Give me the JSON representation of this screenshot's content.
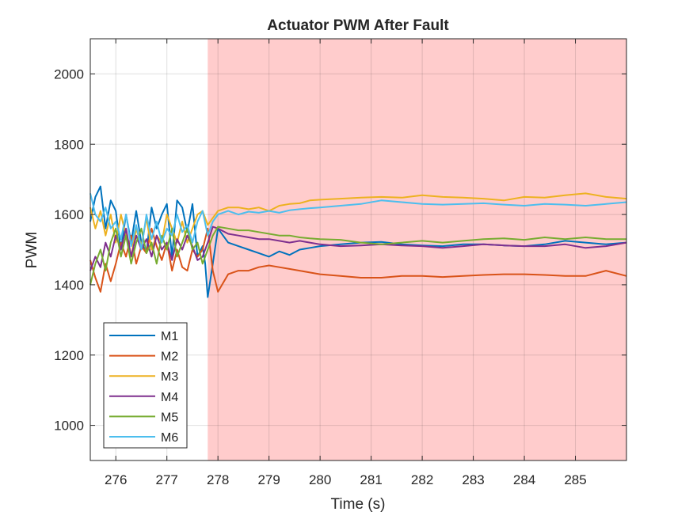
{
  "chart_data": {
    "type": "line",
    "title": "Actuator PWM After Fault",
    "xlabel": "Time (s)",
    "ylabel": "PWM",
    "xlim": [
      275.5,
      286.0
    ],
    "ylim": [
      900,
      2100
    ],
    "xticks": [
      276,
      277,
      278,
      279,
      280,
      281,
      282,
      283,
      284,
      285
    ],
    "yticks": [
      1000,
      1200,
      1400,
      1600,
      1800,
      2000
    ],
    "grid": true,
    "legend_location": "bottom-left",
    "fault_region": {
      "x_start": 277.8,
      "x_end": 286.0,
      "color": "#ffcccc"
    },
    "series": [
      {
        "name": "M1",
        "color": "#0072BD",
        "x": [
          275.5,
          275.6,
          275.7,
          275.8,
          275.9,
          276.0,
          276.1,
          276.2,
          276.3,
          276.4,
          276.5,
          276.6,
          276.7,
          276.8,
          276.9,
          277.0,
          277.1,
          277.2,
          277.3,
          277.4,
          277.5,
          277.6,
          277.7,
          277.75,
          277.8,
          277.9,
          278.0,
          278.2,
          278.4,
          278.6,
          278.8,
          279.0,
          279.2,
          279.4,
          279.6,
          279.8,
          280.0,
          280.4,
          280.8,
          281.2,
          281.6,
          282.0,
          282.4,
          282.8,
          283.2,
          283.6,
          284.0,
          284.4,
          284.8,
          285.2,
          285.6,
          286.0
        ],
        "y": [
          1580,
          1650,
          1680,
          1560,
          1640,
          1610,
          1500,
          1600,
          1520,
          1610,
          1520,
          1490,
          1620,
          1560,
          1600,
          1630,
          1480,
          1640,
          1620,
          1550,
          1630,
          1480,
          1510,
          1460,
          1365,
          1460,
          1560,
          1520,
          1510,
          1500,
          1490,
          1480,
          1495,
          1485,
          1500,
          1505,
          1510,
          1515,
          1520,
          1522,
          1515,
          1512,
          1510,
          1515,
          1515,
          1512,
          1510,
          1515,
          1525,
          1520,
          1515,
          1520
        ]
      },
      {
        "name": "M2",
        "color": "#D95319",
        "x": [
          275.5,
          275.6,
          275.7,
          275.8,
          275.9,
          276.0,
          276.1,
          276.2,
          276.3,
          276.4,
          276.5,
          276.6,
          276.7,
          276.8,
          276.9,
          277.0,
          277.1,
          277.2,
          277.3,
          277.4,
          277.5,
          277.6,
          277.7,
          277.8,
          277.9,
          278.0,
          278.2,
          278.4,
          278.6,
          278.8,
          279.0,
          279.2,
          279.4,
          279.6,
          279.8,
          280.0,
          280.4,
          280.8,
          281.2,
          281.6,
          282.0,
          282.4,
          282.8,
          283.2,
          283.6,
          284.0,
          284.4,
          284.8,
          285.2,
          285.6,
          286.0
        ],
        "y": [
          1470,
          1420,
          1380,
          1460,
          1410,
          1460,
          1520,
          1480,
          1540,
          1460,
          1510,
          1490,
          1560,
          1510,
          1470,
          1520,
          1440,
          1500,
          1450,
          1440,
          1500,
          1480,
          1500,
          1560,
          1440,
          1380,
          1430,
          1440,
          1440,
          1450,
          1455,
          1450,
          1445,
          1440,
          1435,
          1430,
          1425,
          1420,
          1420,
          1425,
          1425,
          1422,
          1425,
          1428,
          1430,
          1430,
          1428,
          1425,
          1425,
          1440,
          1425
        ]
      },
      {
        "name": "M3",
        "color": "#EDB120",
        "x": [
          275.5,
          275.6,
          275.7,
          275.8,
          275.9,
          276.0,
          276.1,
          276.2,
          276.3,
          276.4,
          276.5,
          276.6,
          276.7,
          276.8,
          276.9,
          277.0,
          277.1,
          277.2,
          277.3,
          277.4,
          277.5,
          277.6,
          277.7,
          277.8,
          277.9,
          278.0,
          278.2,
          278.4,
          278.6,
          278.8,
          279.0,
          279.2,
          279.4,
          279.6,
          279.8,
          280.0,
          280.4,
          280.8,
          281.2,
          281.6,
          282.0,
          282.4,
          282.8,
          283.2,
          283.6,
          284.0,
          284.4,
          284.8,
          285.2,
          285.6,
          286.0
        ],
        "y": [
          1620,
          1560,
          1610,
          1540,
          1600,
          1520,
          1600,
          1540,
          1480,
          1560,
          1510,
          1590,
          1500,
          1540,
          1520,
          1600,
          1560,
          1520,
          1580,
          1520,
          1560,
          1600,
          1610,
          1570,
          1590,
          1610,
          1620,
          1620,
          1615,
          1620,
          1610,
          1625,
          1630,
          1632,
          1640,
          1642,
          1645,
          1648,
          1650,
          1648,
          1655,
          1650,
          1648,
          1645,
          1640,
          1650,
          1648,
          1655,
          1660,
          1650,
          1645
        ]
      },
      {
        "name": "M4",
        "color": "#7E2F8E",
        "x": [
          275.5,
          275.6,
          275.7,
          275.8,
          275.9,
          276.0,
          276.1,
          276.2,
          276.3,
          276.4,
          276.5,
          276.6,
          276.7,
          276.8,
          276.9,
          277.0,
          277.1,
          277.2,
          277.3,
          277.4,
          277.5,
          277.6,
          277.7,
          277.8,
          277.9,
          278.0,
          278.2,
          278.4,
          278.6,
          278.8,
          279.0,
          279.2,
          279.4,
          279.6,
          279.8,
          280.0,
          280.4,
          280.8,
          281.2,
          281.6,
          282.0,
          282.4,
          282.8,
          283.2,
          283.6,
          284.0,
          284.4,
          284.8,
          285.2,
          285.6,
          286.0
        ],
        "y": [
          1440,
          1480,
          1450,
          1520,
          1480,
          1540,
          1500,
          1560,
          1480,
          1540,
          1500,
          1530,
          1480,
          1540,
          1500,
          1520,
          1470,
          1530,
          1500,
          1540,
          1510,
          1470,
          1480,
          1520,
          1565,
          1560,
          1545,
          1540,
          1535,
          1530,
          1530,
          1525,
          1520,
          1525,
          1520,
          1515,
          1510,
          1512,
          1515,
          1512,
          1510,
          1505,
          1510,
          1515,
          1512,
          1510,
          1510,
          1515,
          1505,
          1510,
          1520
        ]
      },
      {
        "name": "M5",
        "color": "#77AC30",
        "x": [
          275.5,
          275.6,
          275.7,
          275.8,
          275.9,
          276.0,
          276.1,
          276.2,
          276.3,
          276.4,
          276.5,
          276.6,
          276.7,
          276.8,
          276.9,
          277.0,
          277.1,
          277.2,
          277.3,
          277.4,
          277.5,
          277.6,
          277.7,
          277.8,
          277.9,
          278.0,
          278.2,
          278.4,
          278.6,
          278.8,
          279.0,
          279.2,
          279.4,
          279.6,
          279.8,
          280.0,
          280.4,
          280.8,
          281.2,
          281.6,
          282.0,
          282.4,
          282.8,
          283.2,
          283.6,
          284.0,
          284.4,
          284.8,
          285.2,
          285.6,
          286.0
        ],
        "y": [
          1400,
          1460,
          1500,
          1440,
          1520,
          1560,
          1480,
          1540,
          1460,
          1520,
          1560,
          1490,
          1520,
          1460,
          1540,
          1500,
          1560,
          1480,
          1520,
          1560,
          1500,
          1520,
          1460,
          1500,
          1540,
          1565,
          1560,
          1555,
          1555,
          1550,
          1545,
          1540,
          1540,
          1535,
          1532,
          1530,
          1528,
          1520,
          1515,
          1520,
          1525,
          1520,
          1525,
          1530,
          1532,
          1528,
          1535,
          1530,
          1535,
          1530,
          1530
        ]
      },
      {
        "name": "M6",
        "color": "#4DBEEE",
        "x": [
          275.5,
          275.6,
          275.7,
          275.8,
          275.9,
          276.0,
          276.1,
          276.2,
          276.3,
          276.4,
          276.5,
          276.6,
          276.7,
          276.8,
          276.9,
          277.0,
          277.1,
          277.2,
          277.3,
          277.4,
          277.5,
          277.6,
          277.7,
          277.8,
          277.9,
          278.0,
          278.2,
          278.4,
          278.6,
          278.8,
          279.0,
          279.2,
          279.4,
          279.6,
          279.8,
          280.0,
          280.4,
          280.8,
          281.2,
          281.6,
          282.0,
          282.4,
          282.8,
          283.2,
          283.6,
          284.0,
          284.4,
          284.8,
          285.2,
          285.6,
          286.0
        ],
        "y": [
          1660,
          1600,
          1580,
          1620,
          1560,
          1580,
          1530,
          1600,
          1510,
          1570,
          1500,
          1600,
          1530,
          1580,
          1520,
          1560,
          1540,
          1600,
          1550,
          1570,
          1520,
          1580,
          1610,
          1540,
          1580,
          1600,
          1610,
          1600,
          1608,
          1605,
          1610,
          1605,
          1612,
          1615,
          1618,
          1620,
          1625,
          1630,
          1640,
          1635,
          1630,
          1628,
          1630,
          1632,
          1628,
          1625,
          1630,
          1628,
          1625,
          1630,
          1635
        ]
      }
    ]
  }
}
